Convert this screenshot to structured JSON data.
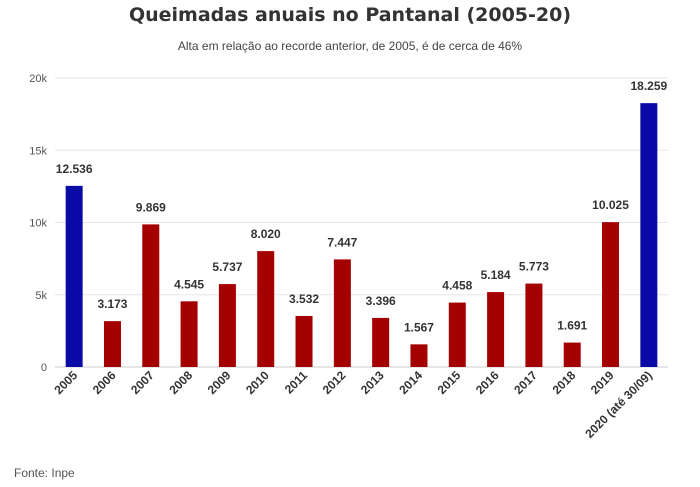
{
  "title": "Queimadas anuais no Pantanal (2005-20)",
  "subtitle": "Alta em relação ao recorde anterior, de 2005, é de cerca de 46%",
  "source": "Fonte: Inpe",
  "colors": {
    "highlight": "#0a0aa6",
    "default": "#a50000",
    "grid": "#e6e6e6",
    "axis": "#333333"
  },
  "chart_data": {
    "type": "bar",
    "title": "Queimadas anuais no Pantanal (2005-20)",
    "subtitle": "Alta em relação ao recorde anterior, de 2005, é de cerca de 46%",
    "categories": [
      "2005",
      "2006",
      "2007",
      "2008",
      "2009",
      "2010",
      "2011",
      "2012",
      "2013",
      "2014",
      "2015",
      "2016",
      "2017",
      "2018",
      "2019",
      "2020 (até 30/09)"
    ],
    "values": [
      12536,
      3173,
      9869,
      4545,
      5737,
      8020,
      3532,
      7447,
      3396,
      1567,
      4458,
      5184,
      5773,
      1691,
      10025,
      18259
    ],
    "value_labels": [
      "12.536",
      "3.173",
      "9.869",
      "4.545",
      "5.737",
      "8.020",
      "3.532",
      "7.447",
      "3.396",
      "1.567",
      "4.458",
      "5.184",
      "5.773",
      "1.691",
      "10.025",
      "18.259"
    ],
    "highlighted": [
      "2005",
      "2020 (até 30/09)"
    ],
    "ylim": [
      0,
      20000
    ],
    "yticks": [
      0,
      5000,
      10000,
      15000,
      20000
    ],
    "ytick_labels": [
      "0",
      "5k",
      "10k",
      "15k",
      "20k"
    ],
    "xlabel": "",
    "ylabel": "",
    "grid": true
  }
}
